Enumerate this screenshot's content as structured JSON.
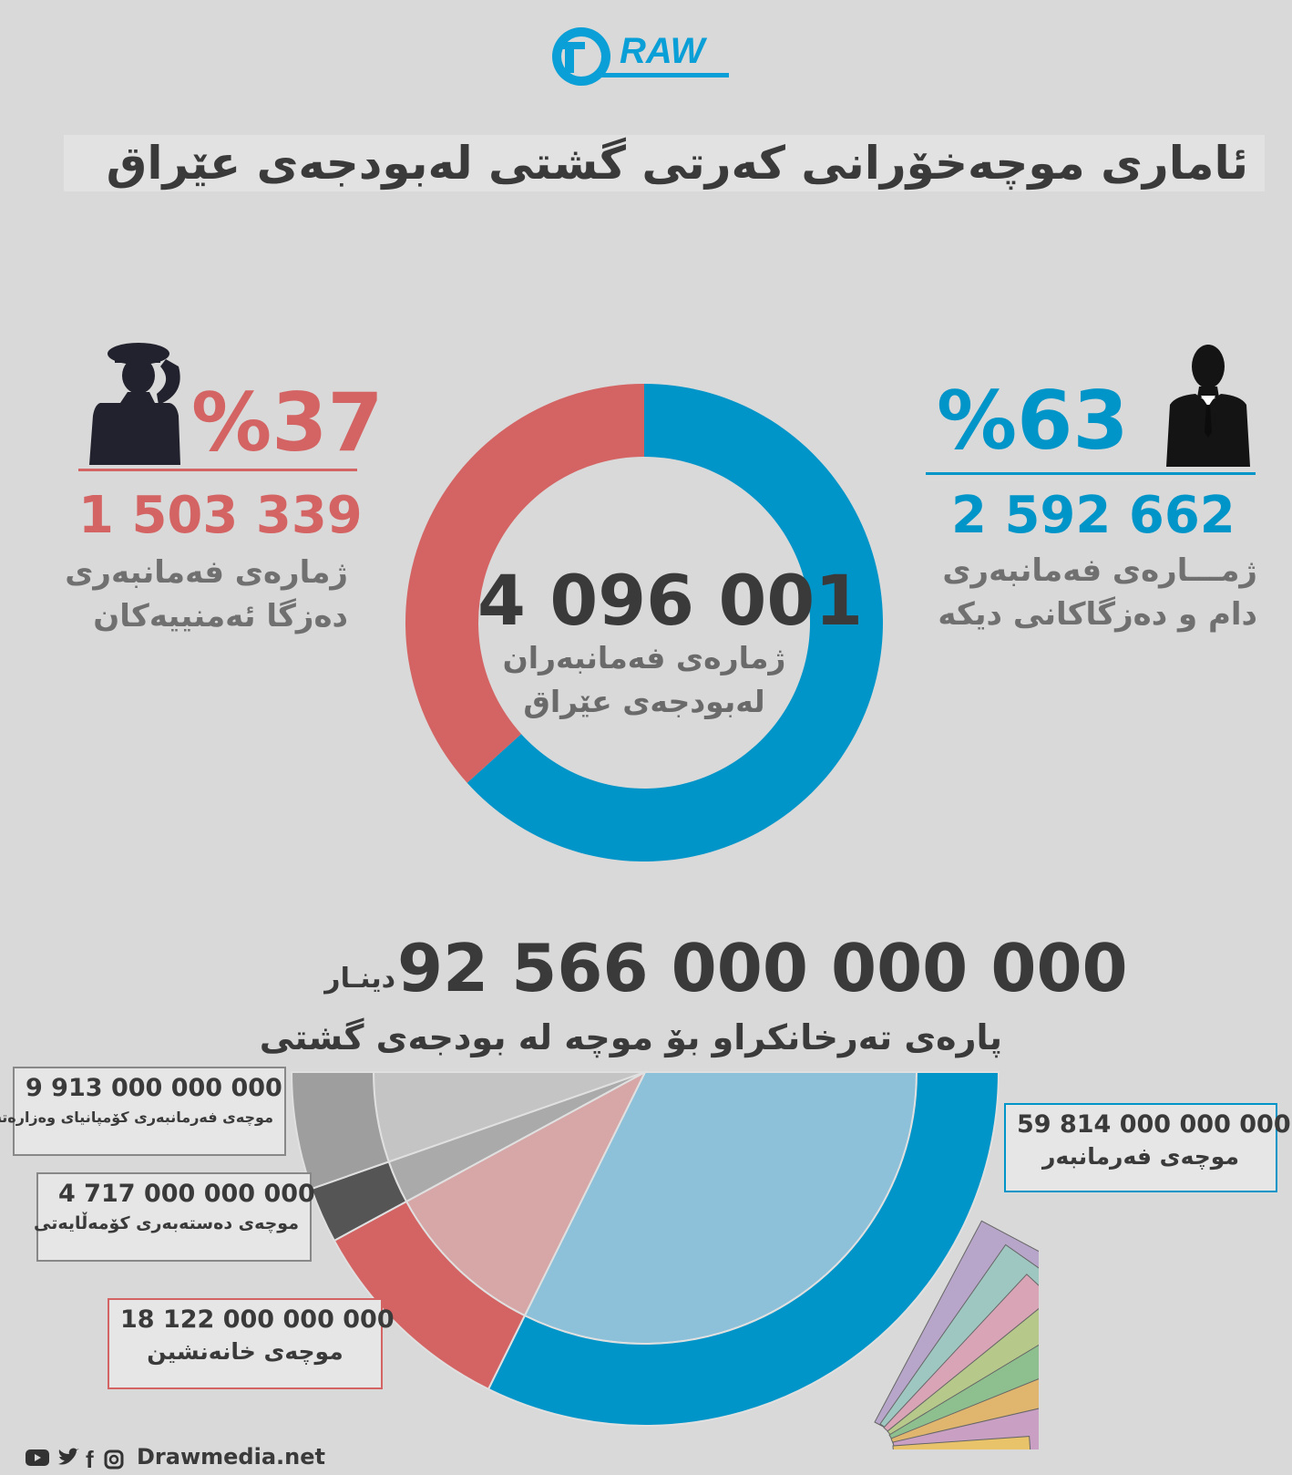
{
  "logo": {
    "text": "RAW",
    "letter": "D"
  },
  "title": "ئاماری موچەخۆرانی کەرتی گشتی لەبودجەی عێراق",
  "security": {
    "percent": "%37",
    "count": "1 503 339",
    "label_line1": "ژمارەی فەمانبەری",
    "label_line2": "دەزگا ئەمنییەکان",
    "icon": "saluting-soldier-icon"
  },
  "civil": {
    "percent": "%63",
    "count": "2 592 662",
    "label_line1": "ژمـــارەی فەمانبەری",
    "label_line2": "دام و دەزگاکانی دیکە",
    "icon": "businessman-icon"
  },
  "center": {
    "total": "4 096 001",
    "label_line1": "ژمارەی فەمانبەران",
    "label_line2": "لەبودجەی عێراق"
  },
  "budget": {
    "total": "92 566 000 000 000",
    "unit": "دینـار",
    "label": "پارەی تەرخانکراو بۆ موچە لە بودجەی گشتی"
  },
  "boxes": {
    "companies": {
      "value": "9 913 000 000 000",
      "label": "موچەی فەرمانبەری کۆمپانیای وەزارەتەکان"
    },
    "social": {
      "value": "4 717 000 000 000",
      "label": "موچەی دەستەبەری کۆمەڵایەتی"
    },
    "pension": {
      "value": "18 122 000 000 000",
      "label": "موچەی خانەنشین"
    },
    "employees": {
      "value": "59 814 000 000 000",
      "label": "موچەی فەرمانبەر"
    }
  },
  "footer": {
    "site": "Drawmedia.net",
    "icons": [
      "youtube-icon",
      "twitter-icon",
      "facebook-icon",
      "instagram-icon"
    ]
  },
  "colors": {
    "blue": "#0095c9",
    "red": "#d46463",
    "gray_dark": "#555555",
    "gray_mid": "#9e9e9e",
    "gray_light": "#bdbdbd",
    "background": "#d9d9d9"
  },
  "chart_data": [
    {
      "type": "pie",
      "subtype": "donut",
      "total": 4096001,
      "slices": [
        {
          "value": 2592662,
          "percent": 63,
          "color": "#0095c9"
        },
        {
          "value": 1503339,
          "percent": 37,
          "color": "#d46463"
        }
      ]
    },
    {
      "type": "pie",
      "subtype": "half-donut",
      "total": 92566000000000,
      "slices": [
        {
          "value": 59814000000000,
          "color": "#0095c9"
        },
        {
          "value": 18122000000000,
          "color": "#d46463"
        },
        {
          "value": 4717000000000,
          "color": "#555555"
        },
        {
          "value": 9913000000000,
          "color": "#9e9e9e"
        }
      ]
    }
  ]
}
